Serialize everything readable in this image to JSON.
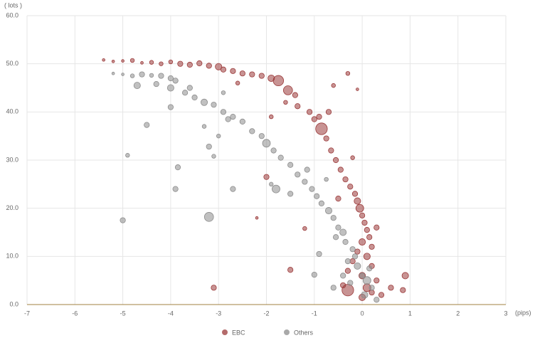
{
  "chart_data": {
    "type": "scatter",
    "y_label": "( lots )",
    "x_label": "(pips)",
    "xlim": [
      -7,
      3
    ],
    "xticks": [
      -7,
      -6,
      -5,
      -4,
      -3,
      -2,
      -1,
      0,
      1,
      2,
      3
    ],
    "ylim": [
      0,
      60
    ],
    "yticks": [
      {
        "value": 0,
        "label": "0.0"
      },
      {
        "value": 10,
        "label": "10.0"
      },
      {
        "value": 20,
        "label": "20.0"
      },
      {
        "value": 30,
        "label": "30.0"
      },
      {
        "value": 40,
        "label": "40.0"
      },
      {
        "value": 50,
        "label": "50.0"
      },
      {
        "value": 60,
        "label": "60.0"
      }
    ],
    "grid": true,
    "legend": "bottom",
    "series": [
      {
        "name": "EBC",
        "color": "#9b3a3a",
        "x": [
          -5.4,
          -5.2,
          -5.0,
          -4.8,
          -4.6,
          -4.4,
          -4.2,
          -4.0,
          -3.8,
          -3.6,
          -3.4,
          -3.2,
          -3.0,
          -2.9,
          -2.7,
          -2.5,
          -2.3,
          -2.1,
          -1.9,
          -1.75,
          -1.55,
          -1.4,
          -1.35,
          -1.1,
          -1.0,
          -0.85,
          -0.75,
          -0.65,
          -0.55,
          -0.45,
          -0.35,
          -0.25,
          -0.15,
          -0.1,
          -0.05,
          0.0,
          0.05,
          0.1,
          0.15,
          0.0,
          0.2,
          -0.1,
          0.1,
          -0.2,
          0.2,
          -0.3,
          0.0,
          0.3,
          -0.4,
          0.1,
          -0.3,
          0.2,
          0.0,
          0.4,
          0.9,
          0.85,
          0.6,
          -1.5,
          -3.1,
          -2.2,
          -1.2,
          -2.0,
          -1.9,
          -0.3,
          -0.1,
          -0.6,
          -0.9,
          -0.5,
          0.3,
          -0.2,
          -0.7,
          -1.6,
          -2.6
        ],
        "y": [
          50.8,
          50.5,
          50.6,
          50.7,
          50.2,
          50.3,
          50.0,
          50.4,
          50.0,
          49.8,
          50.1,
          49.6,
          49.4,
          48.8,
          48.5,
          48.0,
          47.8,
          47.5,
          47.0,
          46.5,
          44.5,
          43.5,
          41.2,
          40.0,
          38.5,
          36.5,
          34.5,
          32.0,
          30.0,
          28.0,
          26.0,
          24.5,
          23.0,
          21.5,
          20.0,
          18.5,
          17.0,
          15.5,
          14.0,
          13.0,
          12.0,
          11.0,
          10.0,
          9.0,
          8.0,
          7.0,
          6.0,
          5.0,
          4.0,
          3.5,
          3.0,
          2.5,
          1.5,
          2.0,
          6.0,
          3.0,
          3.5,
          7.2,
          3.5,
          18.0,
          15.8,
          26.5,
          39.0,
          48.0,
          44.7,
          45.5,
          39.0,
          22.0,
          16.0,
          30.5,
          40.0,
          42.0,
          46.0
        ],
        "sizes": [
          1,
          1,
          1,
          2,
          1,
          2,
          2,
          2,
          3,
          3,
          3,
          3,
          4,
          3,
          3,
          3,
          3,
          3,
          4,
          7,
          6,
          3,
          3,
          3,
          3,
          8,
          3,
          3,
          3,
          3,
          3,
          3,
          3,
          4,
          5,
          3,
          3,
          3,
          3,
          4,
          3,
          3,
          4,
          3,
          3,
          3,
          4,
          3,
          3,
          5,
          8,
          3,
          4,
          3,
          4,
          3,
          3,
          3,
          3,
          1,
          2,
          3,
          2,
          2,
          1,
          2,
          3,
          3,
          3,
          2,
          3,
          2,
          2
        ]
      },
      {
        "name": "Others",
        "color": "#8c8c8c",
        "x": [
          -5.2,
          -5.0,
          -4.8,
          -4.6,
          -4.4,
          -4.2,
          -4.0,
          -3.9,
          -4.7,
          -4.3,
          -4.0,
          -3.7,
          -3.5,
          -3.3,
          -3.1,
          -2.9,
          -2.7,
          -2.5,
          -2.3,
          -2.1,
          -2.0,
          -1.85,
          -1.7,
          -1.5,
          -1.35,
          -1.2,
          -1.05,
          -0.95,
          -0.85,
          -0.7,
          -0.6,
          -0.5,
          -0.4,
          -0.35,
          -0.2,
          -0.15,
          -0.1,
          0.0,
          0.1,
          0.2,
          0.05,
          0.3,
          -0.4,
          -0.9,
          -1.0,
          -0.6,
          -5.0,
          -3.2,
          -3.9,
          -2.7,
          -3.85,
          -4.9,
          -4.5,
          -4.0,
          -3.2,
          -3.1,
          -3.0,
          -2.8,
          -1.8,
          -1.9,
          -1.5,
          -1.15,
          -0.75,
          -0.55,
          -0.3,
          0.15,
          -0.25,
          -3.6,
          -2.9,
          -3.3
        ],
        "y": [
          48,
          47.8,
          47.5,
          47.8,
          47.6,
          47.5,
          47.0,
          46.5,
          45.5,
          45.8,
          45.0,
          44.0,
          43.0,
          42.0,
          41.5,
          40.0,
          39.0,
          38.0,
          36.0,
          35.0,
          33.5,
          32.0,
          30.5,
          29.0,
          27.0,
          25.5,
          24.0,
          22.5,
          21.0,
          19.5,
          18.0,
          16.0,
          15.0,
          13.0,
          11.5,
          10.0,
          8.0,
          6.0,
          5.0,
          3.5,
          2.0,
          1.0,
          6.0,
          10.5,
          6.2,
          3.5,
          17.5,
          18.2,
          24.0,
          24.0,
          28.5,
          31.0,
          37.3,
          41.0,
          32.8,
          30.8,
          35.0,
          38.5,
          24.0,
          25.0,
          23.0,
          28.0,
          26.0,
          14.0,
          9.0,
          7.5,
          4.5,
          45.0,
          44.0,
          37.0
        ],
        "sizes": [
          1,
          1,
          2,
          3,
          2,
          3,
          3,
          3,
          4,
          3,
          4,
          3,
          3,
          4,
          3,
          3,
          3,
          3,
          3,
          3,
          5,
          3,
          3,
          3,
          3,
          3,
          3,
          3,
          3,
          4,
          3,
          3,
          4,
          3,
          3,
          3,
          4,
          3,
          5,
          3,
          4,
          3,
          3,
          3,
          3,
          3,
          3,
          6,
          3,
          3,
          3,
          2,
          3,
          3,
          3,
          2,
          2,
          3,
          5,
          2,
          3,
          3,
          2,
          3,
          3,
          3,
          3,
          3,
          2,
          2
        ]
      }
    ]
  }
}
